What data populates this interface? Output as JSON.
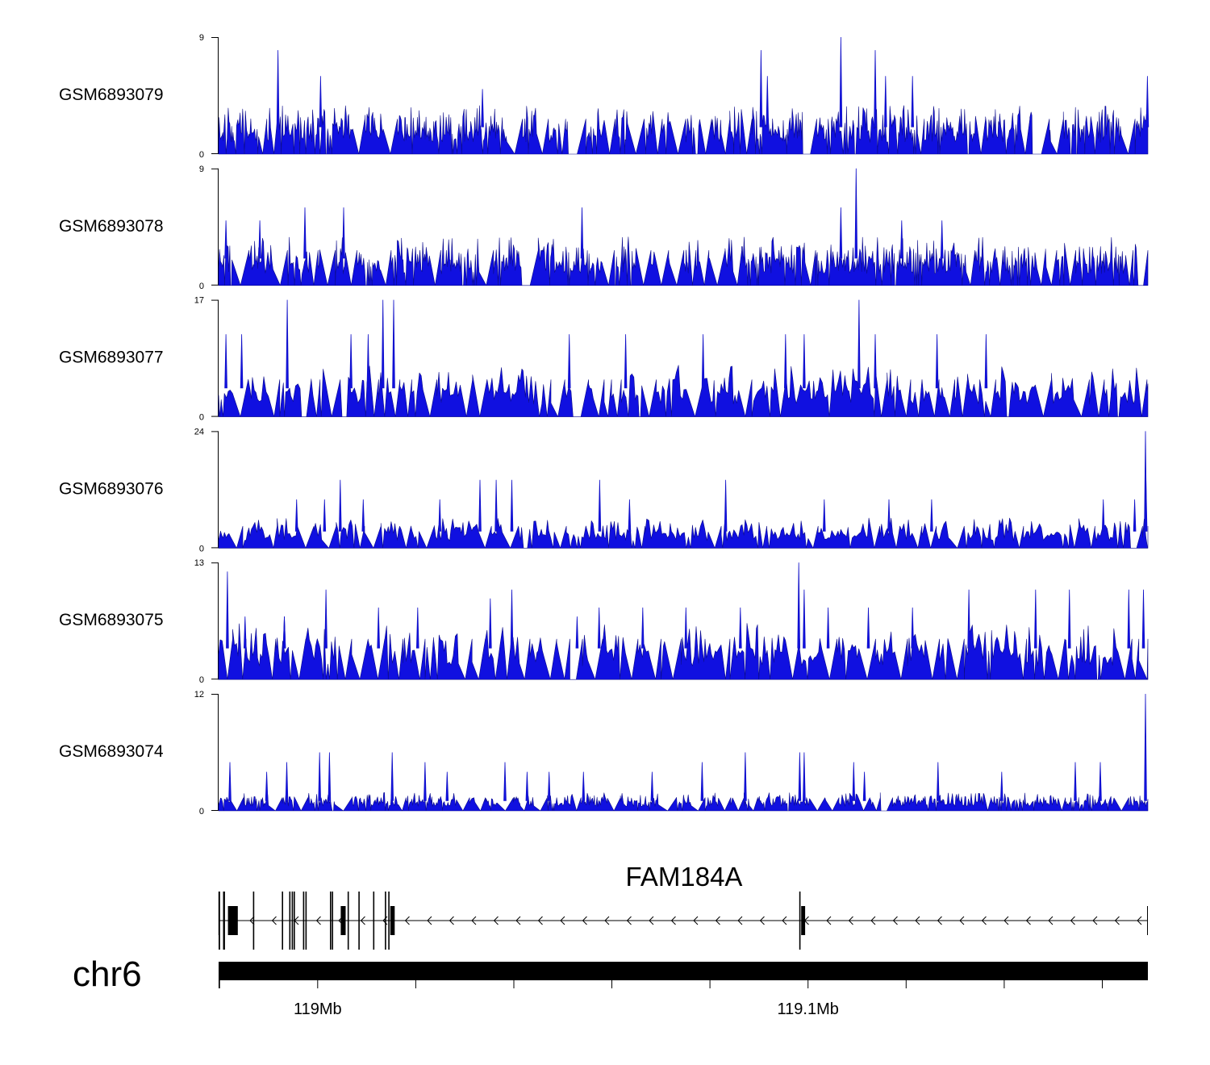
{
  "chart_data": {
    "type": "area",
    "title": "",
    "chromosome": "chr6",
    "xlim_mb": [
      118.9798,
      119.1693
    ],
    "x_ticks_mb": [
      118.98,
      119.0,
      119.02,
      119.04,
      119.06,
      119.08,
      119.1,
      119.12,
      119.14,
      119.16
    ],
    "x_tick_labels": [
      {
        "mb": 119.0,
        "label": "119Mb"
      },
      {
        "mb": 119.1,
        "label": "119.1Mb"
      }
    ],
    "tracks": [
      {
        "name": "GSM6893079",
        "ymin_label": "0",
        "ymax_label": "9",
        "ymax": 9,
        "typical_max": 3,
        "seed": 11,
        "peaks": [
          [
            118.9919,
            8
          ],
          [
            119.0006,
            6
          ],
          [
            119.0336,
            5
          ],
          [
            119.0904,
            8
          ],
          [
            119.0917,
            6
          ],
          [
            119.1067,
            9
          ],
          [
            119.1137,
            8
          ],
          [
            119.1158,
            6
          ],
          [
            119.1213,
            6
          ],
          [
            119.1692,
            6
          ]
        ]
      },
      {
        "name": "GSM6893078",
        "ymin_label": "0",
        "ymax_label": "9",
        "ymax": 9,
        "typical_max": 3,
        "seed": 23,
        "peaks": [
          [
            118.9813,
            5
          ],
          [
            118.9882,
            5
          ],
          [
            118.9974,
            6
          ],
          [
            119.0053,
            6
          ],
          [
            119.0539,
            6
          ],
          [
            119.1067,
            6
          ],
          [
            119.1098,
            9
          ],
          [
            119.1191,
            5
          ],
          [
            119.1273,
            5
          ]
        ]
      },
      {
        "name": "GSM6893077",
        "ymin_label": "0",
        "ymax_label": "17",
        "ymax": 17,
        "typical_max": 6,
        "seed": 37,
        "peaks": [
          [
            118.9813,
            12
          ],
          [
            118.9845,
            12
          ],
          [
            118.9938,
            17
          ],
          [
            119.0068,
            12
          ],
          [
            119.0103,
            12
          ],
          [
            119.0133,
            17
          ],
          [
            119.0155,
            17
          ],
          [
            119.0513,
            12
          ],
          [
            119.0628,
            12
          ],
          [
            119.0786,
            12
          ],
          [
            119.0954,
            12
          ],
          [
            119.0992,
            12
          ],
          [
            119.1104,
            17
          ],
          [
            119.1137,
            12
          ],
          [
            119.1263,
            12
          ],
          [
            119.1363,
            12
          ]
        ]
      },
      {
        "name": "GSM6893076",
        "ymin_label": "0",
        "ymax_label": "24",
        "ymax": 24,
        "typical_max": 5,
        "seed": 53,
        "peaks": [
          [
            118.9957,
            10
          ],
          [
            119.0014,
            10
          ],
          [
            119.0046,
            14
          ],
          [
            119.0093,
            10
          ],
          [
            119.0249,
            10
          ],
          [
            119.0331,
            14
          ],
          [
            119.0364,
            14
          ],
          [
            119.0396,
            14
          ],
          [
            119.0575,
            14
          ],
          [
            119.0636,
            10
          ],
          [
            119.0832,
            14
          ],
          [
            119.1033,
            10
          ],
          [
            119.1165,
            10
          ],
          [
            119.1252,
            10
          ],
          [
            119.1602,
            10
          ],
          [
            119.1666,
            10
          ],
          [
            119.1688,
            24
          ],
          [
            119.1689,
            14
          ]
        ]
      },
      {
        "name": "GSM6893075",
        "ymin_label": "0",
        "ymax_label": "13",
        "ymax": 13,
        "typical_max": 5,
        "seed": 71,
        "peaks": [
          [
            118.9816,
            12
          ],
          [
            118.9852,
            7
          ],
          [
            118.9932,
            7
          ],
          [
            118.9932,
            7
          ],
          [
            119.0017,
            10
          ],
          [
            119.0124,
            8
          ],
          [
            119.0204,
            8
          ],
          [
            119.0352,
            9
          ],
          [
            119.0396,
            10
          ],
          [
            119.0529,
            7
          ],
          [
            119.0574,
            8
          ],
          [
            119.0663,
            8
          ],
          [
            119.0751,
            8
          ],
          [
            119.0862,
            8
          ],
          [
            119.0981,
            13
          ],
          [
            119.0992,
            10
          ],
          [
            119.1041,
            8
          ],
          [
            119.1123,
            8
          ],
          [
            119.1213,
            8
          ],
          [
            119.1328,
            10
          ],
          [
            119.1464,
            10
          ],
          [
            119.1533,
            10
          ],
          [
            119.1654,
            10
          ],
          [
            119.1684,
            10
          ]
        ]
      },
      {
        "name": "GSM6893074",
        "ymin_label": "0",
        "ymax_label": "12",
        "ymax": 12,
        "typical_max": 1.5,
        "seed": 89,
        "peaks": [
          [
            118.9821,
            5
          ],
          [
            118.9896,
            4
          ],
          [
            118.9937,
            5
          ],
          [
            119.0004,
            6
          ],
          [
            119.0024,
            6
          ],
          [
            119.0152,
            6
          ],
          [
            119.0219,
            5
          ],
          [
            119.0264,
            4
          ],
          [
            119.0382,
            5
          ],
          [
            119.0427,
            4
          ],
          [
            119.0472,
            4
          ],
          [
            119.0542,
            4
          ],
          [
            119.0682,
            4
          ],
          [
            119.0784,
            5
          ],
          [
            119.0872,
            6
          ],
          [
            119.0983,
            6
          ],
          [
            119.0992,
            6
          ],
          [
            119.1093,
            5
          ],
          [
            119.1115,
            4
          ],
          [
            119.1265,
            5
          ],
          [
            119.1395,
            4
          ],
          [
            119.1545,
            5
          ],
          [
            119.1596,
            5
          ],
          [
            119.1688,
            12
          ]
        ]
      }
    ],
    "gene": {
      "name": "FAM184A",
      "strand": "-",
      "exons_mb": [
        [
          118.9798,
          118.9801
        ],
        [
          118.9807,
          118.9811
        ],
        [
          118.9817,
          118.9837
        ],
        [
          118.9868,
          118.987
        ],
        [
          118.9927,
          118.9929
        ],
        [
          118.9942,
          118.9943
        ],
        [
          118.9947,
          118.9948
        ],
        [
          118.9951,
          118.9952
        ],
        [
          118.997,
          118.9971
        ],
        [
          118.9975,
          118.9976
        ],
        [
          119.0025,
          119.0026
        ],
        [
          119.0029,
          119.003
        ],
        [
          119.0047,
          119.0057
        ],
        [
          119.0061,
          119.0062
        ],
        [
          119.0083,
          119.0084
        ],
        [
          119.0113,
          119.0114
        ],
        [
          119.0137,
          119.0138
        ],
        [
          119.0144,
          119.0145
        ],
        [
          119.0148,
          119.0157
        ],
        [
          119.0982,
          119.0983
        ],
        [
          119.0986,
          119.0994
        ]
      ],
      "tx_start_mb": 118.9798,
      "tx_end_mb": 119.1693
    },
    "xlabel": "",
    "ylabel": ""
  }
}
